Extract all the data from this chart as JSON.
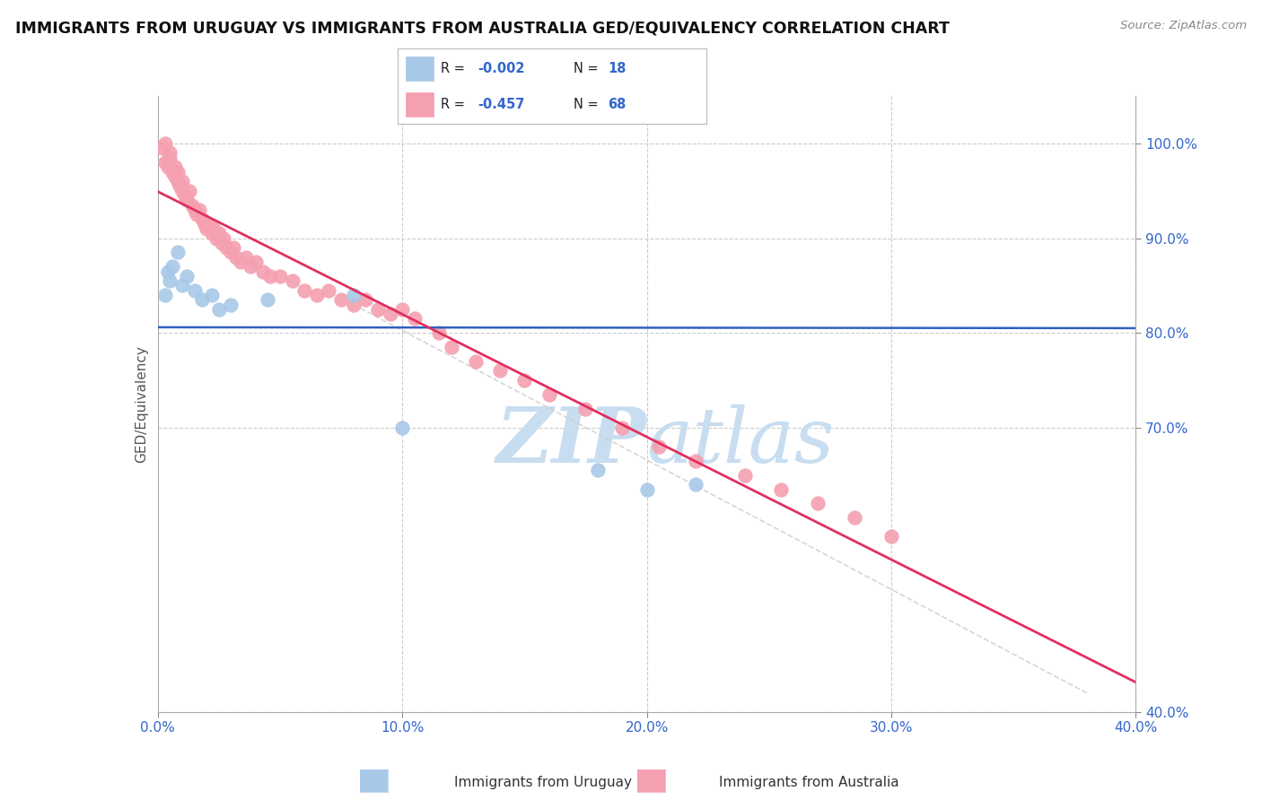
{
  "title": "IMMIGRANTS FROM URUGUAY VS IMMIGRANTS FROM AUSTRALIA GED/EQUIVALENCY CORRELATION CHART",
  "source_text": "Source: ZipAtlas.com",
  "ylabel": "GED/Equivalency",
  "legend_label_1": "Immigrants from Uruguay",
  "legend_label_2": "Immigrants from Australia",
  "R1": -0.002,
  "N1": 18,
  "R2": -0.457,
  "N2": 68,
  "xlim": [
    0.0,
    40.0
  ],
  "ylim": [
    40.0,
    105.0
  ],
  "xticks": [
    0.0,
    10.0,
    20.0,
    30.0,
    40.0
  ],
  "yticks_right": [
    40.0,
    70.0,
    80.0,
    90.0,
    100.0
  ],
  "color_uruguay": "#a8c8e8",
  "color_australia": "#f4a0b0",
  "line_color_uruguay": "#3060c0",
  "line_color_australia": "#e03060",
  "watermark_color": "#c8ddf0",
  "background_color": "#ffffff",
  "grid_color": "#cccccc",
  "uruguay_x": [
    0.3,
    0.4,
    0.5,
    0.6,
    0.8,
    1.0,
    1.2,
    1.5,
    1.8,
    2.2,
    2.5,
    3.0,
    4.5,
    8.0,
    10.0,
    18.0,
    20.0,
    22.0
  ],
  "uruguay_y": [
    84.0,
    86.5,
    85.5,
    87.0,
    88.5,
    85.0,
    86.0,
    84.5,
    83.5,
    84.0,
    82.5,
    83.0,
    83.5,
    84.0,
    70.0,
    65.5,
    63.5,
    64.0
  ],
  "australia_x": [
    0.2,
    0.3,
    0.3,
    0.4,
    0.5,
    0.5,
    0.6,
    0.7,
    0.7,
    0.8,
    0.8,
    0.9,
    1.0,
    1.0,
    1.1,
    1.2,
    1.3,
    1.4,
    1.5,
    1.6,
    1.7,
    1.8,
    1.9,
    2.0,
    2.1,
    2.2,
    2.3,
    2.4,
    2.5,
    2.6,
    2.7,
    2.8,
    3.0,
    3.1,
    3.2,
    3.4,
    3.6,
    3.8,
    4.0,
    4.3,
    4.6,
    5.0,
    5.5,
    6.0,
    6.5,
    7.0,
    7.5,
    8.0,
    8.5,
    9.0,
    9.5,
    10.0,
    10.5,
    11.5,
    12.0,
    13.0,
    14.0,
    15.0,
    16.0,
    17.5,
    19.0,
    20.5,
    22.0,
    24.0,
    25.5,
    27.0,
    28.5,
    30.0
  ],
  "australia_y": [
    99.5,
    98.0,
    100.0,
    97.5,
    98.5,
    99.0,
    97.0,
    96.5,
    97.5,
    96.0,
    97.0,
    95.5,
    95.0,
    96.0,
    94.5,
    94.0,
    95.0,
    93.5,
    93.0,
    92.5,
    93.0,
    92.0,
    91.5,
    91.0,
    91.5,
    90.5,
    91.0,
    90.0,
    90.5,
    89.5,
    90.0,
    89.0,
    88.5,
    89.0,
    88.0,
    87.5,
    88.0,
    87.0,
    87.5,
    86.5,
    86.0,
    86.0,
    85.5,
    84.5,
    84.0,
    84.5,
    83.5,
    83.0,
    83.5,
    82.5,
    82.0,
    82.5,
    81.5,
    80.0,
    78.5,
    77.0,
    76.0,
    75.0,
    73.5,
    72.0,
    70.0,
    68.0,
    66.5,
    65.0,
    63.5,
    62.0,
    60.5,
    58.5
  ],
  "diag_line_x": [
    8.0,
    38.0
  ],
  "diag_line_y": [
    83.0,
    42.0
  ]
}
